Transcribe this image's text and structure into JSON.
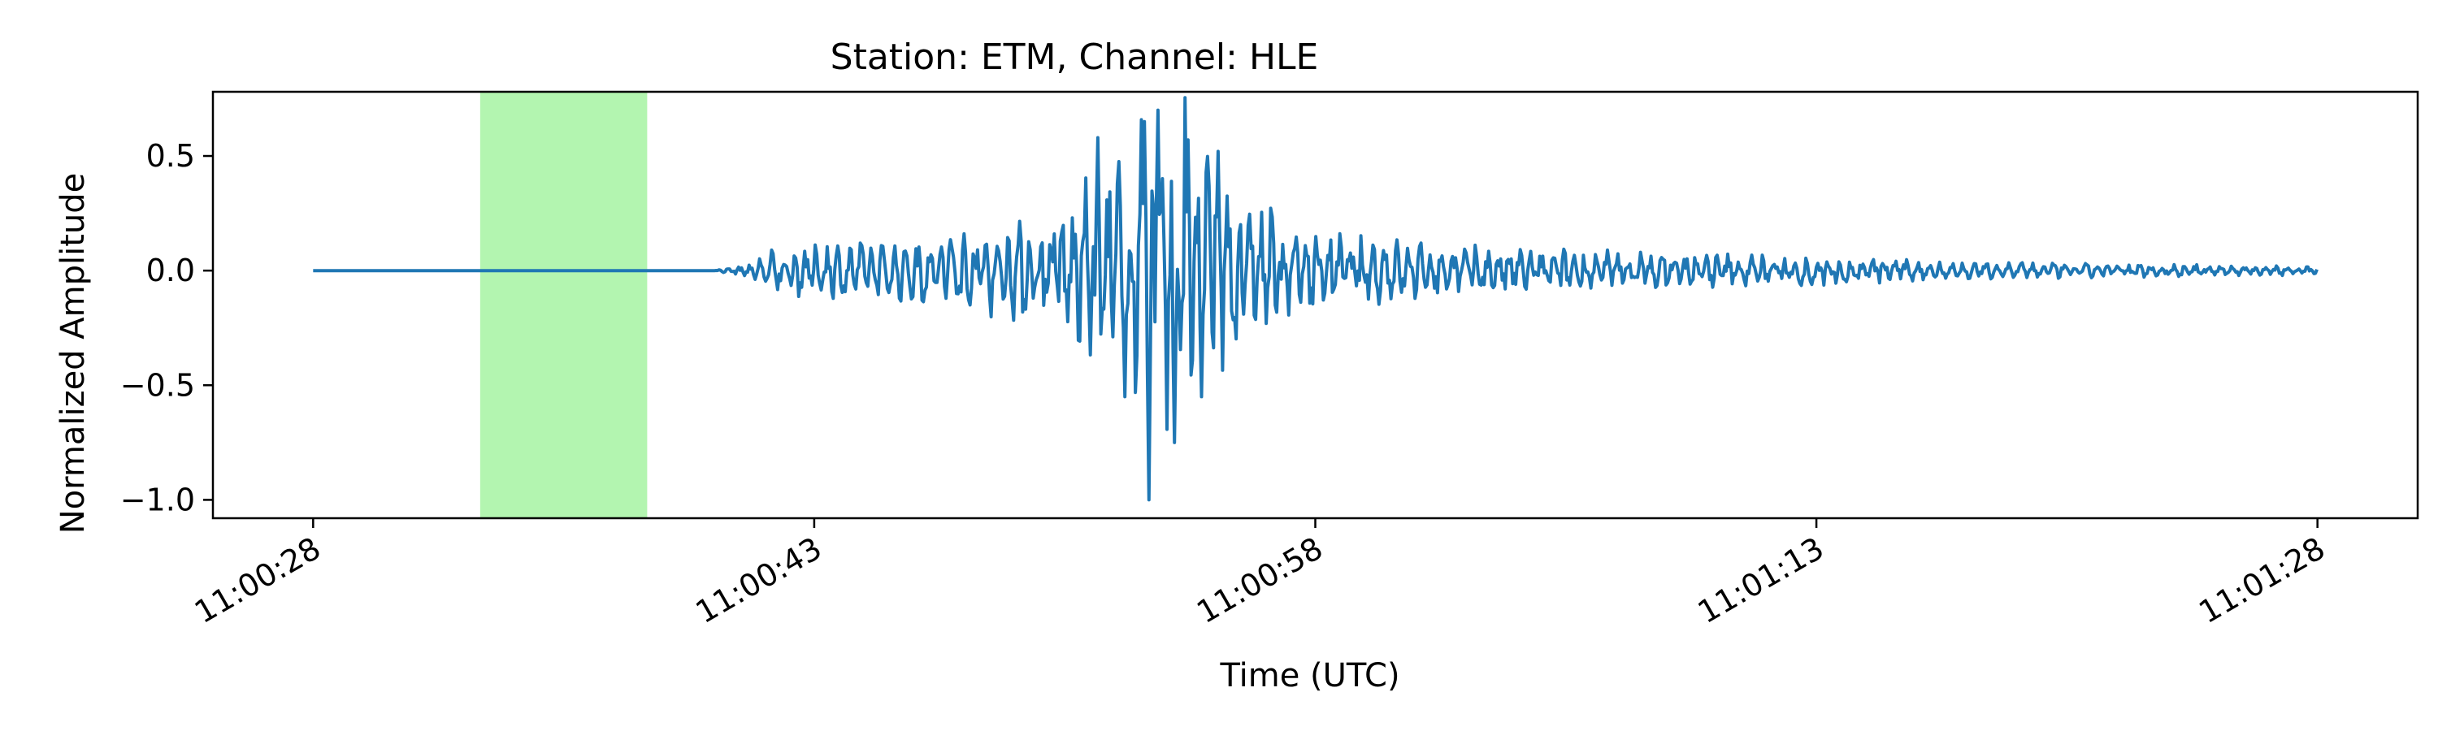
{
  "chart_data": {
    "type": "line",
    "title": "Station: ETM, Channel: HLE",
    "xlabel": "Time (UTC)",
    "ylabel": "Normalized Amplitude",
    "x_start_time": "11:00:28",
    "x_end_time": "11:01:28",
    "xlim": [
      "11:00:25",
      "11:01:31"
    ],
    "ylim": [
      -1.08,
      0.78
    ],
    "x_ticks": [
      "11:00:28",
      "11:00:43",
      "11:00:58",
      "11:01:13",
      "11:01:28"
    ],
    "y_ticks": [
      {
        "value": 0.5,
        "label": "0.5"
      },
      {
        "value": 0.0,
        "label": "0.0"
      },
      {
        "value": -0.5,
        "label": "−0.5"
      },
      {
        "value": -1.0,
        "label": "−1.0"
      }
    ],
    "highlight_span": {
      "start": "11:00:33",
      "end": "11:00:38",
      "color": "#b3f5b0"
    },
    "grid": false,
    "legend": "none",
    "series": [
      {
        "color": "#1f77b4",
        "envelope": [
          {
            "t": "11:00:28",
            "amp": 0.0
          },
          {
            "t": "11:00:40",
            "amp": 0.0
          },
          {
            "t": "11:00:41",
            "amp": 0.03
          },
          {
            "t": "11:00:42",
            "amp": 0.12
          },
          {
            "t": "11:00:45",
            "amp": 0.13
          },
          {
            "t": "11:00:48",
            "amp": 0.2
          },
          {
            "t": "11:00:50",
            "amp": 0.25
          },
          {
            "t": "11:00:51",
            "amp": 0.4
          },
          {
            "t": "11:00:52",
            "amp": 0.58
          },
          {
            "t": "11:00:53",
            "amp": 0.7
          },
          {
            "t": "11:00:54",
            "amp": 0.85
          },
          {
            "t": "11:00:55",
            "amp": 0.6
          },
          {
            "t": "11:00:56",
            "amp": 0.35
          },
          {
            "t": "11:00:58",
            "amp": 0.18
          },
          {
            "t": "11:01:02",
            "amp": 0.12
          },
          {
            "t": "11:01:07",
            "amp": 0.09
          },
          {
            "t": "11:01:13",
            "amp": 0.07
          },
          {
            "t": "11:01:18",
            "amp": 0.04
          },
          {
            "t": "11:01:28",
            "amp": 0.02
          }
        ],
        "peaks": [
          {
            "t": "11:00:51.5",
            "value": 0.58
          },
          {
            "t": "11:00:52.3",
            "value": -0.55
          },
          {
            "t": "11:00:52.9",
            "value": 0.65
          },
          {
            "t": "11:00:53.3",
            "value": 0.7
          },
          {
            "t": "11:00:53.8",
            "value": -0.75
          },
          {
            "t": "11:00:54.2",
            "value": 0.57
          },
          {
            "t": "11:00:53.0",
            "value": -1.0
          },
          {
            "t": "11:00:54.6",
            "value": -0.55
          },
          {
            "t": "11:00:55.1",
            "value": 0.52
          }
        ]
      }
    ]
  }
}
